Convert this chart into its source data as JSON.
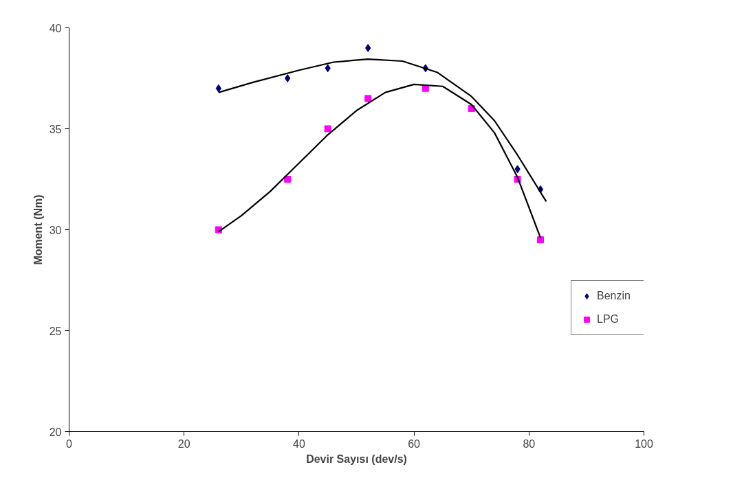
{
  "chart_data": {
    "type": "scatter",
    "xlabel": "Devir Sayısı (dev/s)",
    "ylabel": "Moment (Nm)",
    "xlim": [
      0,
      100
    ],
    "ylim": [
      20,
      40
    ],
    "xticks": [
      0,
      20,
      40,
      60,
      80,
      100
    ],
    "yticks": [
      20,
      25,
      30,
      35,
      40
    ],
    "grid": false,
    "legend": "right",
    "series": [
      {
        "name": "Benzin",
        "marker": "diamond",
        "color": "#000080",
        "x": [
          26,
          38,
          45,
          52,
          62,
          78,
          82
        ],
        "values": [
          37,
          37.5,
          38,
          39,
          38,
          33,
          32
        ]
      },
      {
        "name": "LPG",
        "marker": "square",
        "color": "#ff00ff",
        "x": [
          26,
          38,
          45,
          52,
          62,
          70,
          78,
          82
        ],
        "values": [
          30,
          32.5,
          35,
          36.5,
          37,
          36,
          32.5,
          29.5
        ]
      },
      {
        "type": "line",
        "color": "#000000",
        "x": [
          26,
          32,
          40,
          46,
          52,
          58,
          64,
          70,
          74,
          78,
          83
        ],
        "values": [
          36.8,
          37.3,
          37.9,
          38.3,
          38.45,
          38.35,
          37.8,
          36.6,
          35.4,
          33.7,
          31.4
        ]
      },
      {
        "type": "line",
        "color": "#000000",
        "x": [
          26,
          30,
          35,
          40,
          45,
          50,
          55,
          60,
          65,
          70,
          74,
          78,
          82
        ],
        "values": [
          29.9,
          30.7,
          31.9,
          33.3,
          34.7,
          35.9,
          36.8,
          37.2,
          37.1,
          36.2,
          34.8,
          32.6,
          29.6
        ]
      }
    ]
  }
}
